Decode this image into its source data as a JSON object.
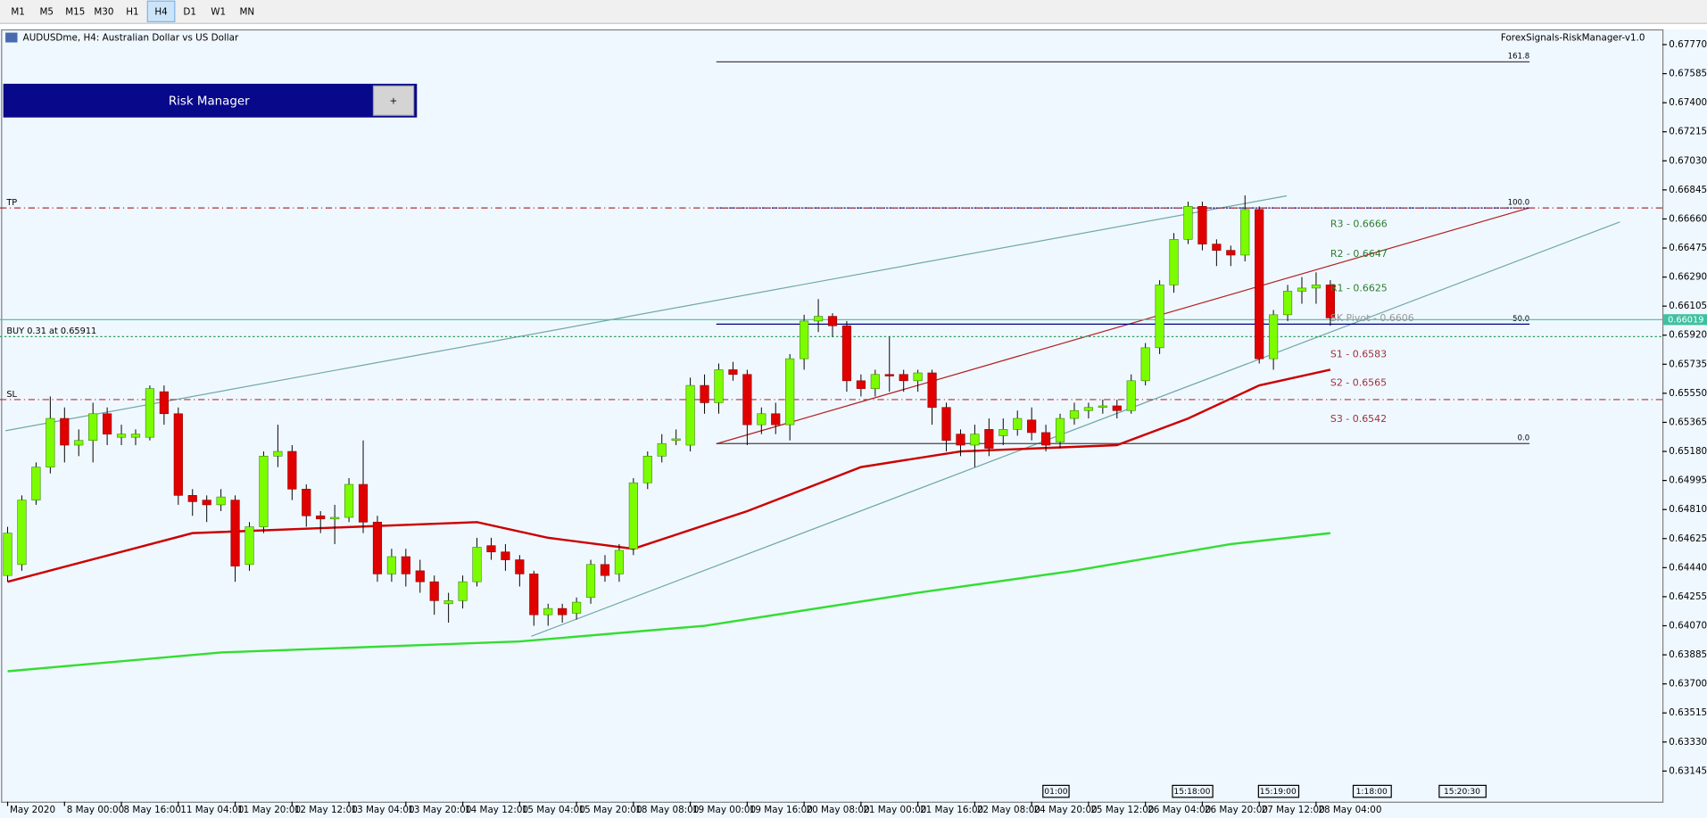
{
  "toolbar": {
    "timeframes": [
      "M1",
      "M5",
      "M15",
      "M30",
      "H1",
      "H4",
      "D1",
      "W1",
      "MN"
    ],
    "active": "H4"
  },
  "header": {
    "symbol": "AUDUSDme, H4:  Australian Dollar vs US Dollar",
    "expert": "ForexSignals-RiskManager-v1.0"
  },
  "panel": {
    "title": "Risk Manager",
    "button": "+"
  },
  "chart_data": {
    "type": "candlestick",
    "up_color": "#7cfc00",
    "down_color": "#e00000",
    "categories": [
      "May 2020",
      null,
      null,
      null,
      "8 May 00:00",
      null,
      null,
      null,
      "8 May 16:00",
      null,
      null,
      null,
      "11 May 04:00",
      null,
      null,
      null,
      "11 May 20:00",
      null,
      null,
      null,
      "12 May 12:00",
      null,
      null,
      null,
      "13 May 04:00",
      null,
      null,
      null,
      "13 May 20:00",
      null,
      null,
      null,
      "14 May 12:00",
      null,
      null,
      null,
      "15 May 04:00",
      null,
      null,
      null,
      "15 May 20:00",
      null,
      null,
      null,
      "18 May 08:00",
      null,
      null,
      null,
      "19 May 00:00",
      null,
      null,
      null,
      "19 May 16:00",
      null,
      null,
      null,
      "20 May 08:00",
      null,
      null,
      null,
      "21 May 00:00",
      null,
      null,
      null,
      "21 May 16:00",
      null,
      null,
      null,
      "22 May 08:00",
      null,
      null,
      null,
      "24 May 20:00",
      null,
      null,
      null,
      "25 May 12:00",
      null,
      null,
      null,
      "26 May 04:00",
      null,
      null,
      null,
      "26 May 20:00",
      null,
      null,
      null,
      "27 May 12:00",
      null,
      null,
      null,
      "28 May 04:00",
      null
    ],
    "open": [
      0.6439,
      0.6446,
      0.6487,
      0.6508,
      0.6539,
      0.6522,
      0.6525,
      0.6542,
      0.6527,
      0.6527,
      0.6527,
      0.6556,
      0.6542,
      0.649,
      0.6487,
      0.6484,
      0.6487,
      0.6446,
      0.647,
      0.6515,
      0.6518,
      0.6494,
      0.6477,
      0.6475,
      0.6476,
      0.6497,
      0.6473,
      0.644,
      0.6451,
      0.6442,
      0.6435,
      0.6421,
      0.6423,
      0.6435,
      0.6458,
      0.6454,
      0.6449,
      0.644,
      0.6414,
      0.6418,
      0.6415,
      0.6425,
      0.6446,
      0.644,
      0.6456,
      0.6498,
      0.6515,
      0.6525,
      0.6522,
      0.656,
      0.6549,
      0.657,
      0.6567,
      0.6535,
      0.6542,
      0.6535,
      0.6577,
      0.6601,
      0.6604,
      0.6598,
      0.6563,
      0.6558,
      0.6567,
      0.6567,
      0.6563,
      0.6568,
      0.6546,
      0.6529,
      0.6522,
      0.6532,
      0.6528,
      0.6532,
      0.6538,
      0.653,
      0.6524,
      0.6539,
      0.6544,
      0.6546,
      0.6547,
      0.6544,
      0.6563,
      0.6584,
      0.6624,
      0.6653,
      0.6674,
      0.665,
      0.6646,
      0.6643,
      0.6672,
      0.6577,
      0.6605,
      0.662,
      0.6622,
      0.6624
    ],
    "high": [
      0.647,
      0.649,
      0.6511,
      0.6553,
      0.6546,
      0.6532,
      0.6549,
      0.6546,
      0.6535,
      0.6532,
      0.656,
      0.656,
      0.6546,
      0.6494,
      0.649,
      0.6494,
      0.649,
      0.6473,
      0.6518,
      0.6535,
      0.6522,
      0.6497,
      0.648,
      0.6484,
      0.6501,
      0.6525,
      0.6477,
      0.6456,
      0.6456,
      0.6449,
      0.6439,
      0.6428,
      0.6439,
      0.6463,
      0.6463,
      0.6459,
      0.6452,
      0.6442,
      0.6421,
      0.6421,
      0.6425,
      0.6449,
      0.6452,
      0.6459,
      0.6501,
      0.6518,
      0.6529,
      0.6532,
      0.6565,
      0.6567,
      0.6574,
      0.6575,
      0.657,
      0.6546,
      0.6549,
      0.658,
      0.6605,
      0.6615,
      0.6606,
      0.6601,
      0.6567,
      0.657,
      0.6591,
      0.657,
      0.657,
      0.657,
      0.6549,
      0.6532,
      0.6535,
      0.6539,
      0.6539,
      0.6544,
      0.6546,
      0.6535,
      0.6542,
      0.6549,
      0.6549,
      0.6551,
      0.6551,
      0.6567,
      0.6587,
      0.6627,
      0.6657,
      0.6677,
      0.6677,
      0.6653,
      0.6649,
      0.6681,
      0.6674,
      0.6608,
      0.6624,
      0.6629,
      0.6632,
      0.6627
    ],
    "low": [
      0.6435,
      0.6442,
      0.6484,
      0.6504,
      0.6511,
      0.6515,
      0.6511,
      0.6522,
      0.6522,
      0.6522,
      0.6525,
      0.6535,
      0.6484,
      0.6477,
      0.6473,
      0.648,
      0.6435,
      0.6442,
      0.6466,
      0.6508,
      0.6487,
      0.647,
      0.6466,
      0.6459,
      0.6473,
      0.6466,
      0.6435,
      0.6435,
      0.6432,
      0.6428,
      0.6414,
      0.6409,
      0.6418,
      0.6432,
      0.6449,
      0.6442,
      0.6432,
      0.6407,
      0.6407,
      0.6409,
      0.6411,
      0.6421,
      0.6435,
      0.6435,
      0.6452,
      0.6494,
      0.6511,
      0.6522,
      0.6518,
      0.6542,
      0.6542,
      0.6563,
      0.6522,
      0.6529,
      0.6529,
      0.6525,
      0.657,
      0.6594,
      0.6591,
      0.6556,
      0.6553,
      0.6553,
      0.6556,
      0.6556,
      0.6556,
      0.6535,
      0.6518,
      0.6515,
      0.6508,
      0.6515,
      0.6522,
      0.6528,
      0.6525,
      0.6518,
      0.652,
      0.6535,
      0.6539,
      0.6542,
      0.6539,
      0.6542,
      0.656,
      0.658,
      0.6619,
      0.665,
      0.6646,
      0.6636,
      0.6636,
      0.6639,
      0.6574,
      0.657,
      0.6601,
      0.6612,
      0.6612,
      0.6598
    ],
    "close": [
      0.6466,
      0.6487,
      0.6508,
      0.6539,
      0.6522,
      0.6525,
      0.6542,
      0.6529,
      0.6529,
      0.6529,
      0.6558,
      0.6542,
      0.649,
      0.6486,
      0.6484,
      0.6489,
      0.6445,
      0.647,
      0.6515,
      0.6518,
      0.6494,
      0.6477,
      0.6475,
      0.6476,
      0.6497,
      0.6473,
      0.644,
      0.6451,
      0.644,
      0.6435,
      0.6423,
      0.6423,
      0.6435,
      0.6457,
      0.6454,
      0.6449,
      0.644,
      0.6414,
      0.6418,
      0.6414,
      0.6422,
      0.6446,
      0.6439,
      0.6455,
      0.6498,
      0.6515,
      0.6523,
      0.6526,
      0.656,
      0.6549,
      0.657,
      0.6567,
      0.6535,
      0.6542,
      0.6535,
      0.6577,
      0.6601,
      0.6604,
      0.6598,
      0.6563,
      0.6558,
      0.6567,
      0.6566,
      0.6563,
      0.6568,
      0.6546,
      0.6525,
      0.6522,
      0.6529,
      0.652,
      0.6532,
      0.6539,
      0.653,
      0.6522,
      0.6539,
      0.6544,
      0.6546,
      0.6547,
      0.6544,
      0.6563,
      0.6584,
      0.6624,
      0.6653,
      0.6674,
      0.665,
      0.6646,
      0.6643,
      0.6672,
      0.6577,
      0.6605,
      0.662,
      0.6622,
      0.6624,
      0.6603
    ],
    "series": [
      {
        "color": "#cc0000",
        "x": [
          0,
          13,
          33,
          38,
          44,
          52,
          60,
          67,
          78,
          83,
          88,
          93
        ],
        "values": [
          0.6435,
          0.6466,
          0.6473,
          0.6463,
          0.6456,
          0.648,
          0.6508,
          0.6518,
          0.6522,
          0.6539,
          0.656,
          0.657
        ]
      },
      {
        "color": "#33dd33",
        "x": [
          0,
          15,
          36,
          49,
          64,
          75,
          86,
          93
        ],
        "values": [
          0.6378,
          0.639,
          0.6397,
          0.6407,
          0.6428,
          0.6442,
          0.6459,
          0.6466
        ]
      }
    ],
    "ylim": [
      0.6295,
      0.6786
    ],
    "yticks": [
      {
        "value": 0.6777,
        "label": "0.67770"
      },
      {
        "value": 0.67585,
        "label": "0.67585"
      },
      {
        "value": 0.674,
        "label": "0.67400"
      },
      {
        "value": 0.67215,
        "label": "0.67215"
      },
      {
        "value": 0.6703,
        "label": "0.67030"
      },
      {
        "value": 0.66845,
        "label": "0.66845"
      },
      {
        "value": 0.6666,
        "label": "0.66660"
      },
      {
        "value": 0.66475,
        "label": "0.66475"
      },
      {
        "value": 0.6629,
        "label": "0.66290"
      },
      {
        "value": 0.66105,
        "label": "0.66105"
      },
      {
        "value": 0.6592,
        "label": "0.65920"
      },
      {
        "value": 0.65735,
        "label": "0.65735"
      },
      {
        "value": 0.6555,
        "label": "0.65550"
      },
      {
        "value": 0.65365,
        "label": "0.65365"
      },
      {
        "value": 0.6518,
        "label": "0.65180"
      },
      {
        "value": 0.64995,
        "label": "0.64995"
      },
      {
        "value": 0.6481,
        "label": "0.64810"
      },
      {
        "value": 0.64625,
        "label": "0.64625"
      },
      {
        "value": 0.6444,
        "label": "0.64440"
      },
      {
        "value": 0.64255,
        "label": "0.64255"
      },
      {
        "value": 0.6407,
        "label": "0.64070"
      },
      {
        "value": 0.63885,
        "label": "0.63885"
      },
      {
        "value": 0.637,
        "label": "0.63700"
      },
      {
        "value": 0.63515,
        "label": "0.63515"
      },
      {
        "value": 0.6333,
        "label": "0.63330"
      },
      {
        "value": 0.63145,
        "label": "0.63145"
      }
    ],
    "levels": [
      {
        "label": "TP",
        "value": 0.6673,
        "color": "#b03030",
        "style": "dashdot"
      },
      {
        "label": "SL",
        "value": 0.6551,
        "color": "#b03030",
        "style": "dashdot"
      },
      {
        "label": "BUY 0.31 at 0.65911",
        "value": 0.65911,
        "color": "#2e9e5e",
        "style": "dot"
      }
    ],
    "fib": [
      {
        "label": "161.8",
        "value": 0.6766,
        "color": "#444444"
      },
      {
        "label": "100.0",
        "value": 0.6673,
        "color": "#000080"
      },
      {
        "label": "50.0",
        "value": 0.6599,
        "color": "#000080"
      },
      {
        "label": "0.0",
        "value": 0.6523,
        "color": "#444444"
      }
    ],
    "pivots": [
      {
        "label": "R3 - 0.6666",
        "value": 0.6666,
        "color": "#2e7d32"
      },
      {
        "label": "R2 - 0.6647",
        "value": 0.6647,
        "color": "#2e7d32"
      },
      {
        "label": "R1 - 0.6625",
        "value": 0.6625,
        "color": "#2e7d32"
      },
      {
        "label": "SK Pivot - 0.6606",
        "value": 0.6606,
        "color": "#999999"
      },
      {
        "label": "S1 - 0.6583",
        "value": 0.6583,
        "color": "#a0303a"
      },
      {
        "label": "S2 - 0.6565",
        "value": 0.6565,
        "color": "#a0303a"
      },
      {
        "label": "S3 - 0.6542",
        "value": 0.6542,
        "color": "#a0303a"
      }
    ],
    "current_price": {
      "value": 0.66019,
      "label": "0.66019"
    },
    "time_markers": [
      "01:00",
      "15:18:00",
      "15:19:00",
      "1:18:00",
      "15:20:30"
    ]
  }
}
